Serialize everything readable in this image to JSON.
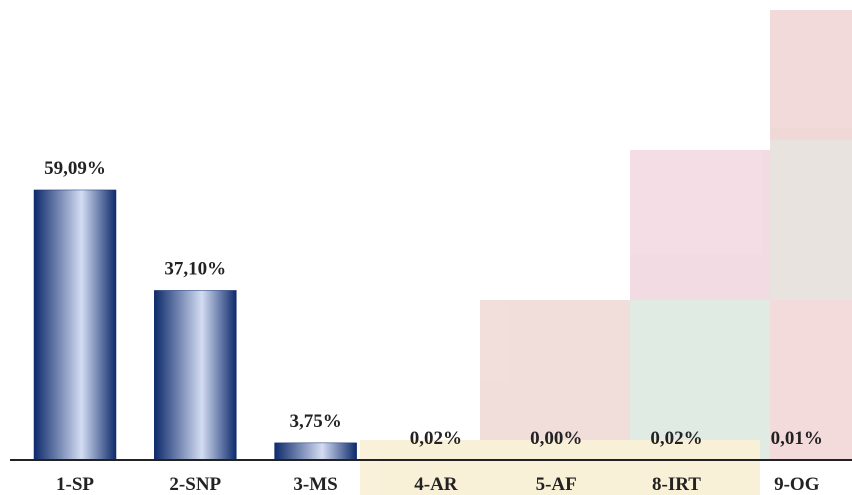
{
  "chart_data": {
    "type": "bar",
    "categories": [
      "1-SP",
      "2-SNP",
      "3-MS",
      "4-AR",
      "5-AF",
      "8-IRT",
      "9-OG"
    ],
    "values": [
      59.09,
      37.1,
      3.75,
      0.02,
      0.0,
      0.02,
      0.01
    ],
    "value_labels": [
      "59,09%",
      "37,10%",
      "3,75%",
      "0,02%",
      "0,00%",
      "0,02%",
      "0,01%"
    ],
    "color": "#0d2a6b"
  }
}
